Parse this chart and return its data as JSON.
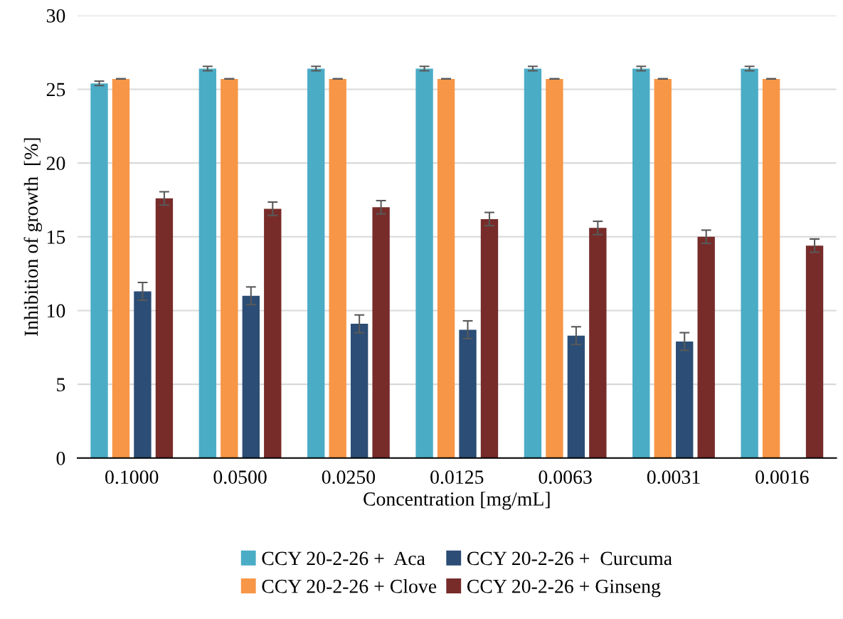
{
  "chart_data": {
    "type": "bar",
    "xlabel": "Concentration [mg/mL]",
    "ylabel": "Inhibition of growth  [%]",
    "categories": [
      "0.1000",
      "0.0500",
      "0.0250",
      "0.0125",
      "0.0063",
      "0.0031",
      "0.0016"
    ],
    "series": [
      {
        "name": "CCY 20-2-26 +  Aca",
        "color": "#4bacc6",
        "values": [
          25.4,
          26.4,
          26.4,
          26.4,
          26.4,
          26.4,
          26.4
        ],
        "errors": [
          0.15,
          0.15,
          0.15,
          0.15,
          0.15,
          0.15,
          0.15
        ]
      },
      {
        "name": "CCY 20-2-26 + Clove",
        "color": "#f79646",
        "values": [
          25.7,
          25.7,
          25.7,
          25.7,
          25.7,
          25.7,
          25.7
        ],
        "errors": [
          0,
          0,
          0,
          0,
          0,
          0,
          0
        ]
      },
      {
        "name": "CCY 20-2-26 +  Curcuma",
        "color": "#2c4d75",
        "values": [
          11.3,
          11.0,
          9.1,
          8.7,
          8.3,
          7.9,
          null
        ],
        "errors": [
          0.6,
          0.6,
          0.6,
          0.6,
          0.6,
          0.6,
          null
        ]
      },
      {
        "name": "CCY 20-2-26 + Ginseng",
        "color": "#772c2a",
        "values": [
          17.6,
          16.9,
          17.0,
          16.2,
          15.6,
          15.0,
          14.4
        ],
        "errors": [
          0.45,
          0.45,
          0.45,
          0.45,
          0.45,
          0.45,
          0.45
        ]
      }
    ],
    "ylim": [
      0,
      30
    ],
    "yticks": [
      0,
      5,
      10,
      15,
      20,
      25,
      30
    ],
    "grid": "y",
    "legend": "bottom"
  }
}
